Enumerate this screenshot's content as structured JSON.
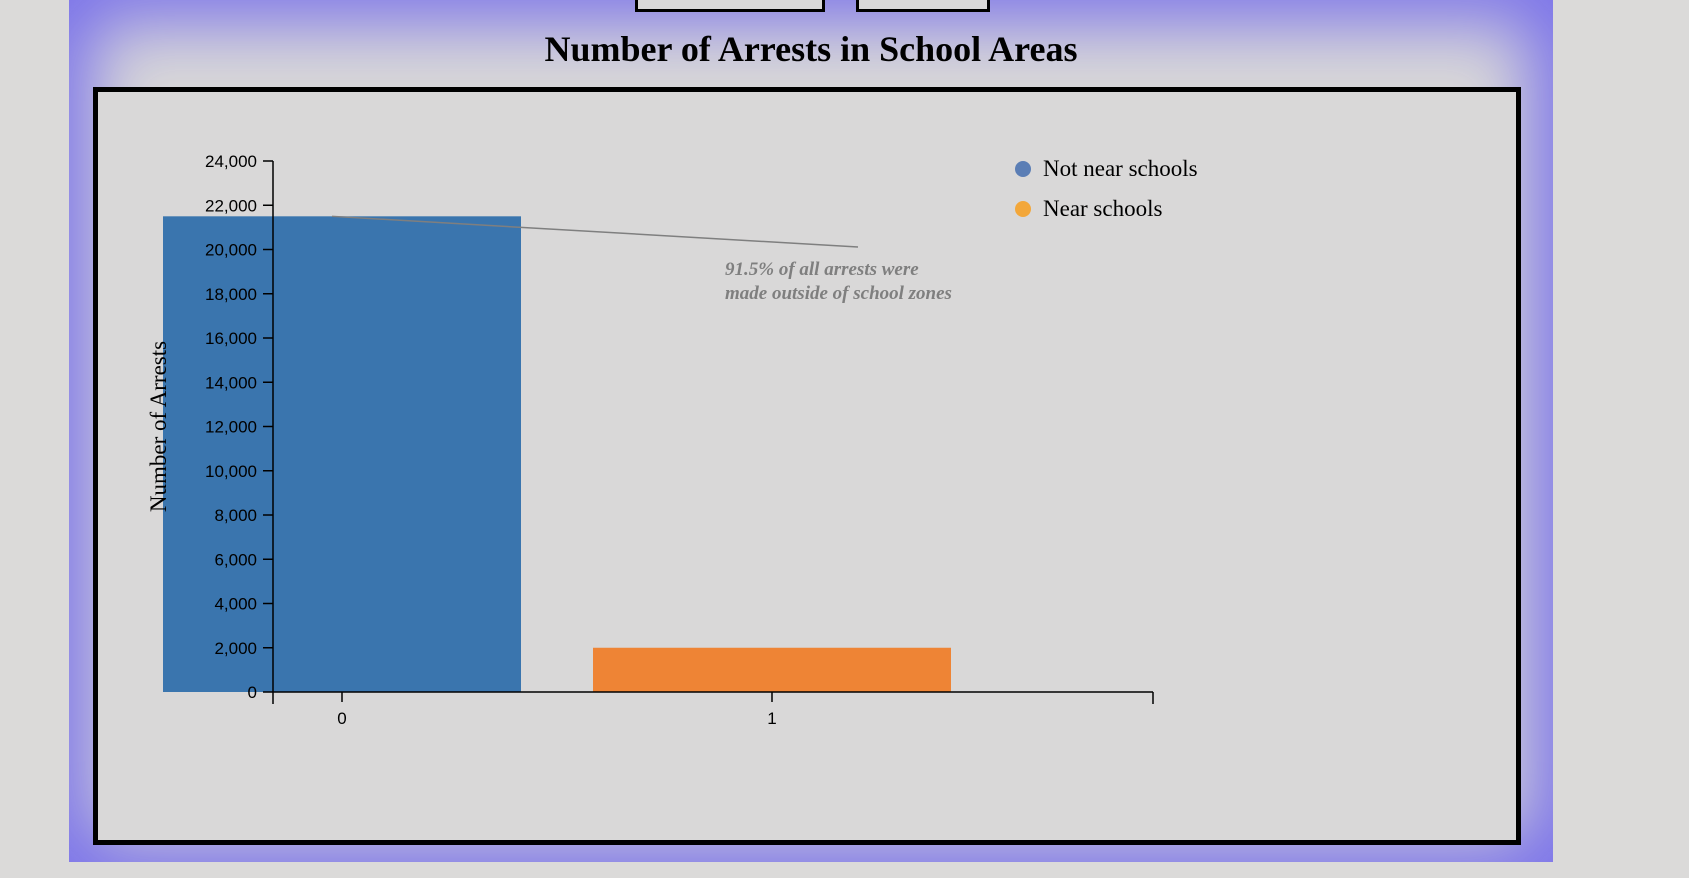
{
  "page": {
    "title": "Number of Arrests in School Areas"
  },
  "colors": {
    "background": "#dbdad9",
    "panel": "#d9d8d8",
    "glow": "#7a72ea",
    "bar_not_near": "#3a75ae",
    "bar_near": "#ee8435",
    "legend_not_near": "#5b7eb5",
    "legend_near": "#f3a73a",
    "annotation": "#7f7f7f"
  },
  "chart_data": {
    "type": "bar",
    "title": "Number of Arrests in School Areas",
    "xlabel": "",
    "ylabel": "Number of Arrests",
    "categories": [
      "0",
      "1"
    ],
    "values": [
      21500,
      2000
    ],
    "ylim": [
      0,
      24000
    ],
    "yticks": [
      0,
      2000,
      4000,
      6000,
      8000,
      10000,
      12000,
      14000,
      16000,
      18000,
      20000,
      22000,
      24000
    ],
    "ytick_labels": [
      "0",
      "2,000",
      "4,000",
      "6,000",
      "8,000",
      "10,000",
      "12,000",
      "14,000",
      "16,000",
      "18,000",
      "20,000",
      "22,000",
      "24,000"
    ],
    "grid": false,
    "legend": {
      "placement": "top-right",
      "entries": [
        {
          "label": "Not near schools",
          "color": "#5b7eb5"
        },
        {
          "label": "Near schools",
          "color": "#f3a73a"
        }
      ]
    },
    "annotation": {
      "lines": [
        "91.5% of all arrests were",
        "made outside of school zones"
      ],
      "target_category": "0"
    }
  }
}
